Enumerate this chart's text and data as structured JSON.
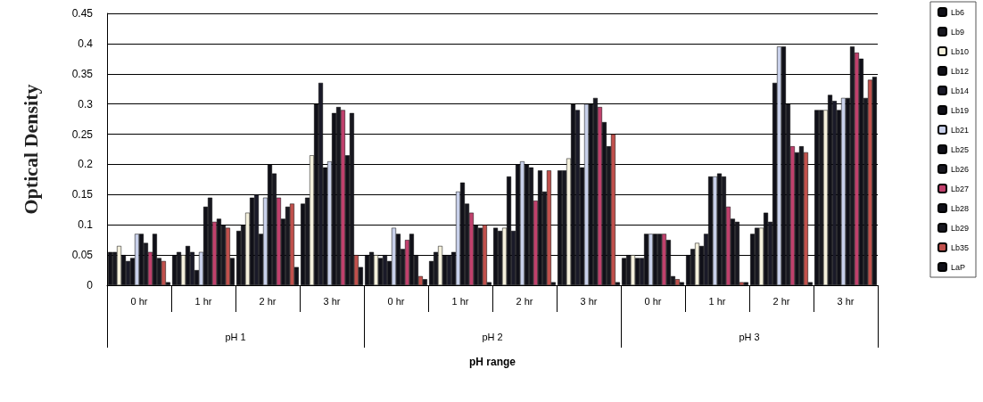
{
  "chart_data": {
    "type": "bar",
    "xlabel": "pH range",
    "ylabel": "Optical Density",
    "categories": [
      "0 hr",
      "1 hr",
      "2 hr",
      "3 hr",
      "0 hr",
      "1 hr",
      "2 hr",
      "3 hr",
      "0 hr",
      "1 hr",
      "2 hr",
      "3 hr"
    ],
    "annotations": [
      "pH 1",
      "pH 2",
      "pH 3"
    ],
    "ylim": [
      0,
      0.45
    ],
    "yticks": [
      0,
      0.05,
      0.1,
      0.15,
      0.2,
      0.25,
      0.3,
      0.35,
      0.4,
      0.45
    ],
    "grid": "y",
    "legend": "right",
    "series": [
      {
        "name": "Lb6",
        "color": "#101018",
        "values": [
          0.055,
          0.05,
          0.09,
          0.135,
          0.05,
          0.04,
          0.095,
          0.19,
          0.045,
          0.05,
          0.085,
          0.29
        ]
      },
      {
        "name": "Lb9",
        "color": "#181820",
        "values": [
          0.055,
          0.055,
          0.1,
          0.145,
          0.055,
          0.055,
          0.09,
          0.19,
          0.05,
          0.06,
          0.095,
          0.29
        ]
      },
      {
        "name": "Lb10",
        "color": "#f4f0dc",
        "values": [
          0.065,
          0.05,
          0.12,
          0.215,
          0.05,
          0.065,
          0.095,
          0.21,
          0.05,
          0.07,
          0.095,
          0.29
        ]
      },
      {
        "name": "Lb12",
        "color": "#101018",
        "values": [
          0.05,
          0.065,
          0.145,
          0.3,
          0.045,
          0.05,
          0.18,
          0.3,
          0.045,
          0.065,
          0.12,
          0.315
        ]
      },
      {
        "name": "Lb14",
        "color": "#1a1a28",
        "values": [
          0.04,
          0.055,
          0.15,
          0.335,
          0.05,
          0.05,
          0.09,
          0.29,
          0.045,
          0.085,
          0.105,
          0.305
        ]
      },
      {
        "name": "Lb19",
        "color": "#101018",
        "values": [
          0.045,
          0.025,
          0.085,
          0.195,
          0.04,
          0.055,
          0.2,
          0.195,
          0.085,
          0.18,
          0.335,
          0.29
        ]
      },
      {
        "name": "Lb21",
        "color": "#c8d0ea",
        "values": [
          0.085,
          0.055,
          0.145,
          0.205,
          0.095,
          0.155,
          0.205,
          0.3,
          0.085,
          0.18,
          0.395,
          0.31
        ]
      },
      {
        "name": "Lb25",
        "color": "#101018",
        "values": [
          0.085,
          0.13,
          0.2,
          0.285,
          0.085,
          0.17,
          0.2,
          0.3,
          0.085,
          0.185,
          0.395,
          0.31
        ]
      },
      {
        "name": "Lb26",
        "color": "#181820",
        "values": [
          0.07,
          0.145,
          0.185,
          0.295,
          0.06,
          0.135,
          0.195,
          0.31,
          0.085,
          0.18,
          0.3,
          0.395
        ]
      },
      {
        "name": "Lb27",
        "color": "#c0406c",
        "values": [
          0.055,
          0.105,
          0.145,
          0.29,
          0.075,
          0.12,
          0.14,
          0.295,
          0.085,
          0.13,
          0.23,
          0.385
        ]
      },
      {
        "name": "Lb28",
        "color": "#101018",
        "values": [
          0.085,
          0.11,
          0.11,
          0.215,
          0.085,
          0.1,
          0.19,
          0.27,
          0.075,
          0.11,
          0.22,
          0.375
        ]
      },
      {
        "name": "Lb29",
        "color": "#181820",
        "values": [
          0.045,
          0.1,
          0.13,
          0.285,
          0.05,
          0.095,
          0.155,
          0.23,
          0.015,
          0.105,
          0.23,
          0.31
        ]
      },
      {
        "name": "Lb35",
        "color": "#c0504c",
        "values": [
          0.04,
          0.095,
          0.135,
          0.05,
          0.015,
          0.1,
          0.19,
          0.25,
          0.01,
          0.005,
          0.22,
          0.34
        ]
      },
      {
        "name": "LaP",
        "color": "#101018",
        "values": [
          0.005,
          0.045,
          0.03,
          0.03,
          0.01,
          0.005,
          0.005,
          0.005,
          0.005,
          0.005,
          0.005,
          0.345
        ]
      }
    ]
  }
}
